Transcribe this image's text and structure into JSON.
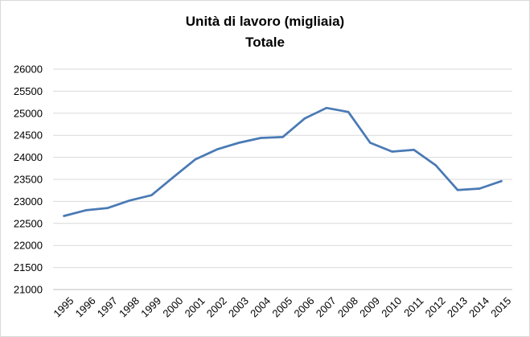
{
  "chart_data": {
    "type": "line",
    "title": "Unità di lavoro (migliaia)",
    "subtitle": "Totale",
    "xlabel": "",
    "ylabel": "",
    "categories": [
      "1995",
      "1996",
      "1997",
      "1998",
      "1999",
      "2000",
      "2001",
      "2002",
      "2003",
      "2004",
      "2005",
      "2006",
      "2007",
      "2008",
      "2009",
      "2010",
      "2011",
      "2012",
      "2013",
      "2014",
      "2015"
    ],
    "series": [
      {
        "values": [
          22670,
          22800,
          22850,
          23020,
          23140,
          23550,
          23950,
          24180,
          24330,
          24440,
          24460,
          24880,
          25120,
          25030,
          24330,
          24130,
          24170,
          23820,
          23260,
          23290,
          23460
        ]
      }
    ],
    "ylim": [
      21000,
      26000
    ],
    "yticks": [
      21000,
      21500,
      22000,
      22500,
      23000,
      23500,
      24000,
      24500,
      25000,
      25500,
      26000
    ],
    "grid": true,
    "legend": "none",
    "colors": {
      "line": "#4a7ab5",
      "grid": "#d9d9d9",
      "axis": "#bfbfbf"
    }
  }
}
